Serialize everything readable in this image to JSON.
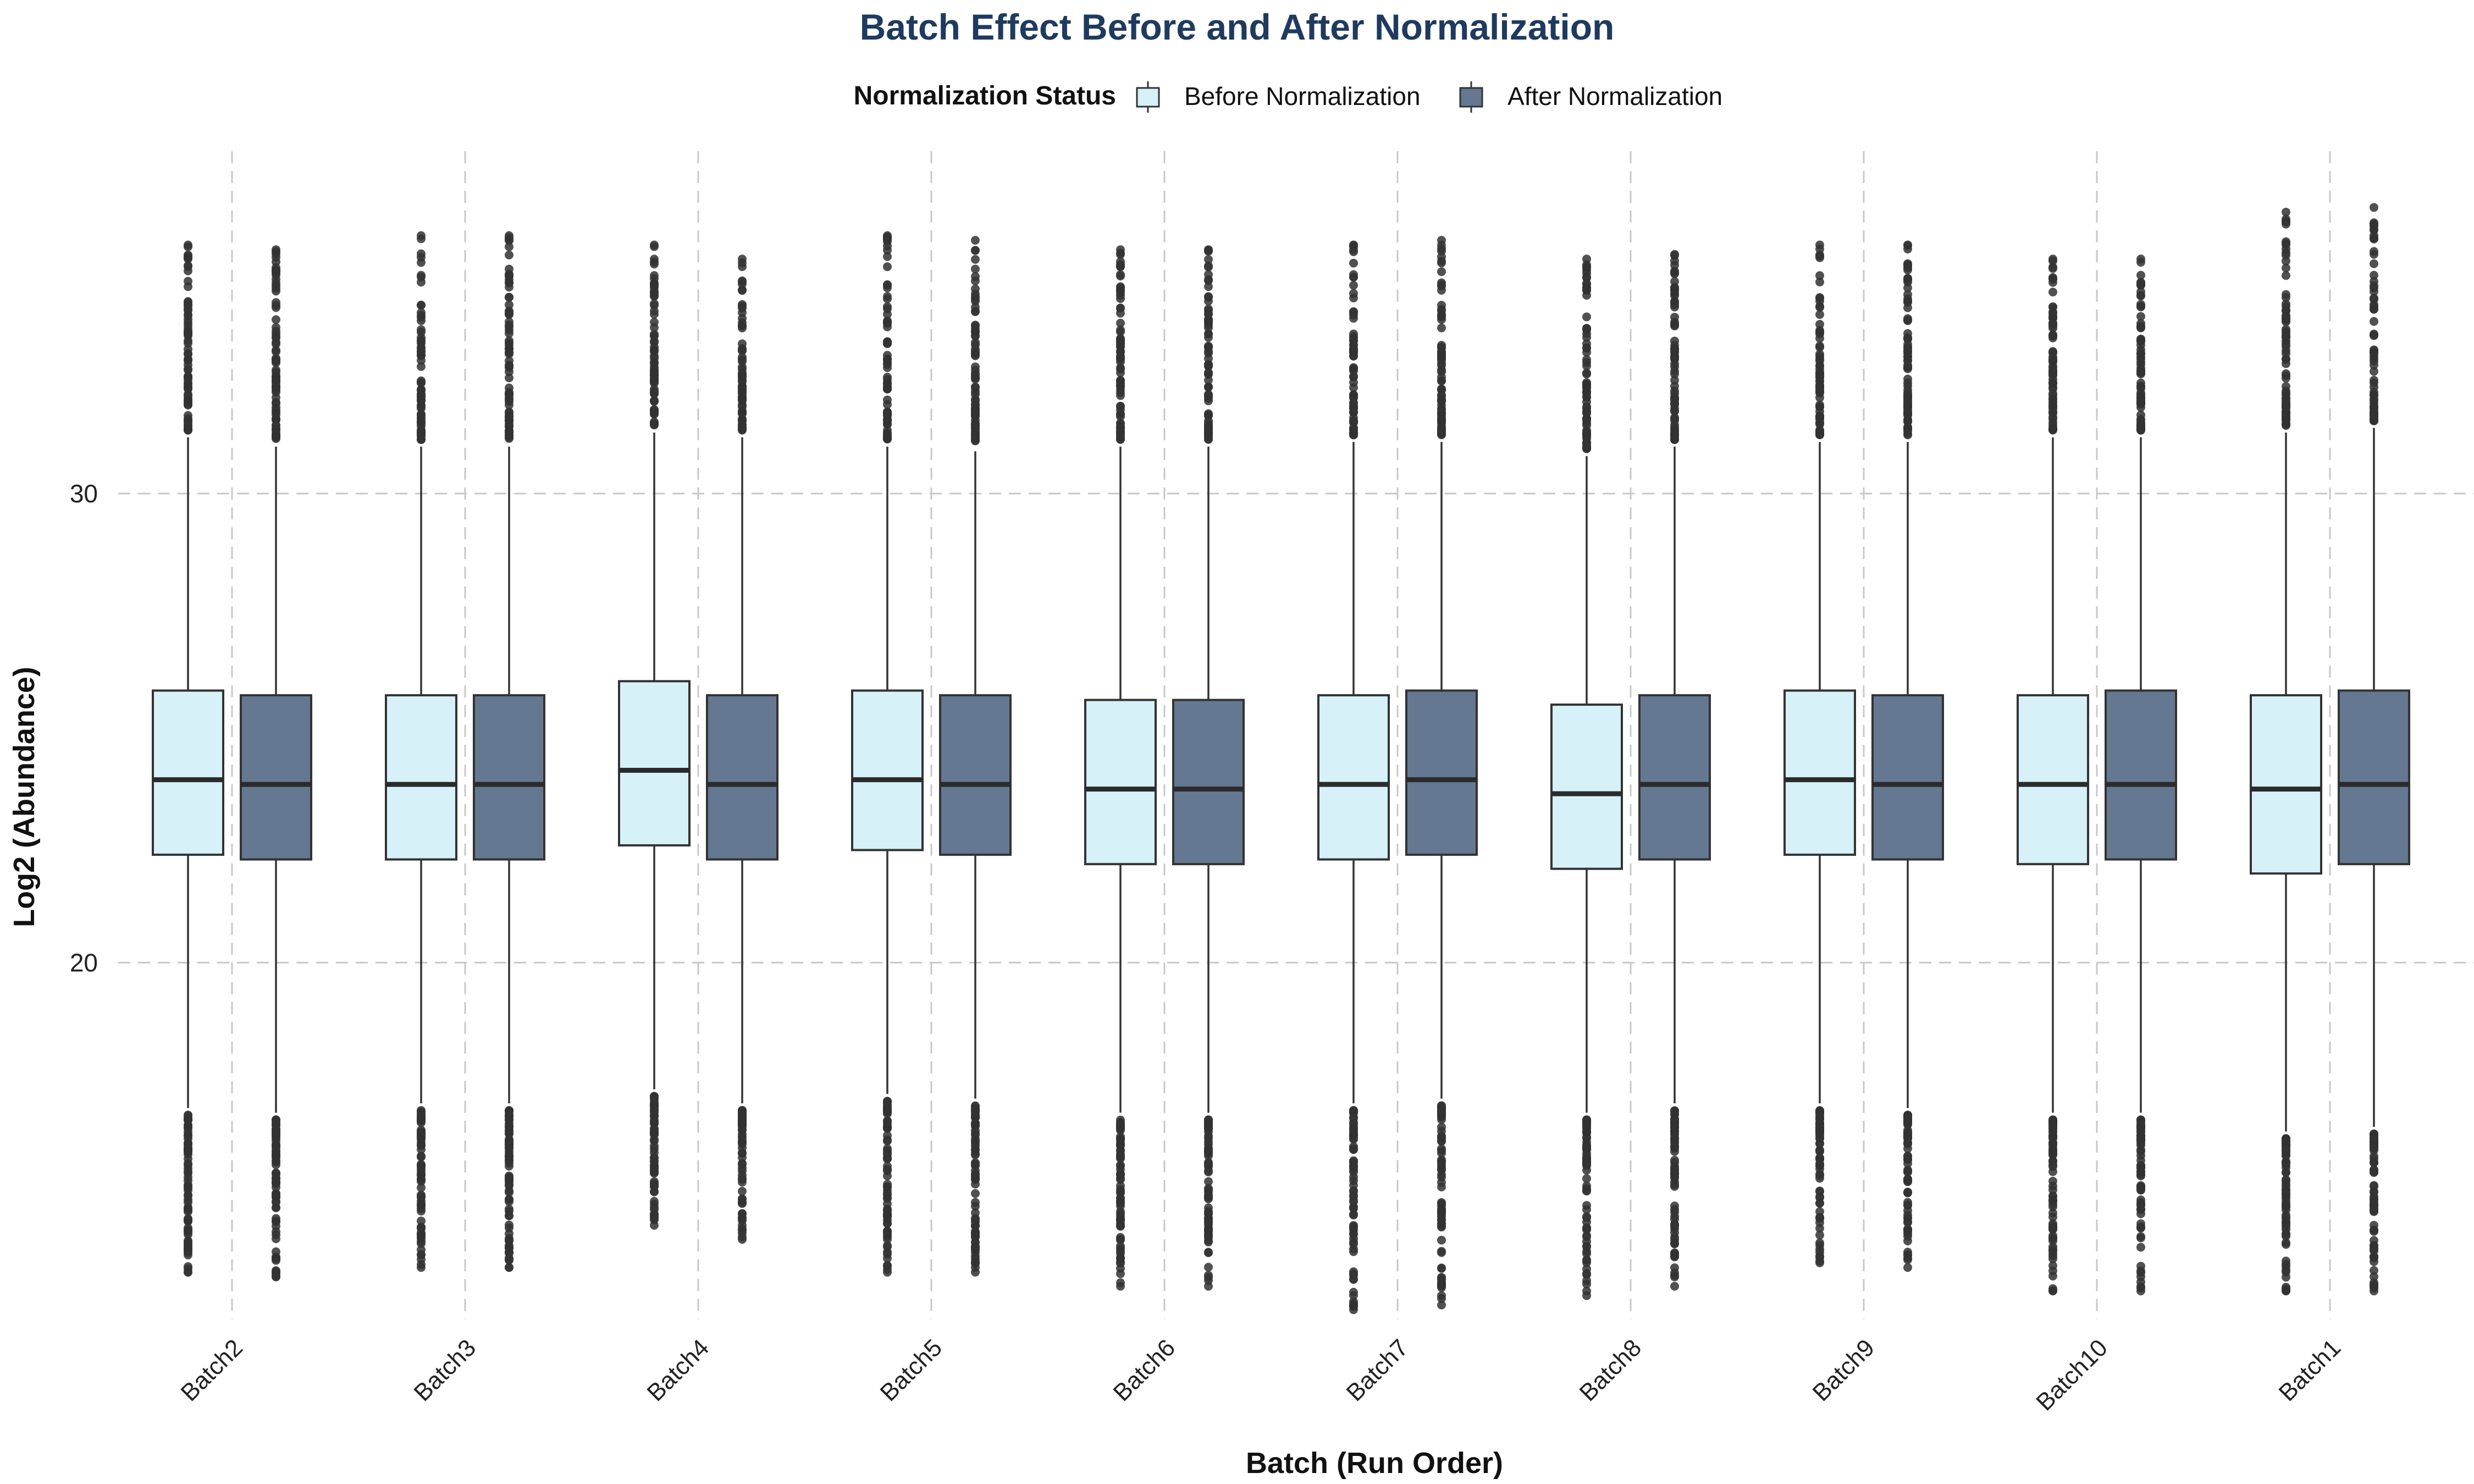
{
  "chart_data": {
    "type": "boxplot",
    "title": "Batch Effect Before and After Normalization",
    "xlabel": "Batch (Run Order)",
    "ylabel": "Log2 (Abundance)",
    "ylim": [
      12.4,
      37.3
    ],
    "yticks": [
      20,
      30
    ],
    "grid": true,
    "legend_title": "Normalization Status",
    "legend_position": "top",
    "categories": [
      "Batch2",
      "Batch3",
      "Batch4",
      "Batch5",
      "Batch6",
      "Batch7",
      "Batch8",
      "Batch9",
      "Batch10",
      "Batch1"
    ],
    "series": [
      {
        "name": "Before Normalization",
        "color": "#d6f1f8",
        "boxes": [
          {
            "q1": 22.3,
            "median": 23.9,
            "q3": 25.8,
            "wlo": 16.9,
            "whi": 31.2,
            "omin": 13.4,
            "omax": 35.3
          },
          {
            "q1": 22.2,
            "median": 23.8,
            "q3": 25.7,
            "wlo": 17.0,
            "whi": 31.0,
            "omin": 13.5,
            "omax": 35.5
          },
          {
            "q1": 22.5,
            "median": 24.1,
            "q3": 26.0,
            "wlo": 17.3,
            "whi": 31.3,
            "omin": 14.4,
            "omax": 35.3
          },
          {
            "q1": 22.4,
            "median": 23.9,
            "q3": 25.8,
            "wlo": 17.2,
            "whi": 31.0,
            "omin": 13.4,
            "omax": 35.5
          },
          {
            "q1": 22.1,
            "median": 23.7,
            "q3": 25.6,
            "wlo": 16.8,
            "whi": 31.0,
            "omin": 13.1,
            "omax": 35.2
          },
          {
            "q1": 22.2,
            "median": 23.8,
            "q3": 25.7,
            "wlo": 17.0,
            "whi": 31.1,
            "omin": 12.6,
            "omax": 35.3
          },
          {
            "q1": 22.0,
            "median": 23.6,
            "q3": 25.5,
            "wlo": 16.8,
            "whi": 30.8,
            "omin": 12.9,
            "omax": 35.0
          },
          {
            "q1": 22.3,
            "median": 23.9,
            "q3": 25.8,
            "wlo": 17.0,
            "whi": 31.1,
            "omin": 13.6,
            "omax": 35.3
          },
          {
            "q1": 22.1,
            "median": 23.8,
            "q3": 25.7,
            "wlo": 16.8,
            "whi": 31.2,
            "omin": 13.0,
            "omax": 35.0
          },
          {
            "q1": 21.9,
            "median": 23.7,
            "q3": 25.7,
            "wlo": 16.4,
            "whi": 31.3,
            "omin": 13.0,
            "omax": 36.0
          }
        ]
      },
      {
        "name": "After Normalization",
        "color": "#647891",
        "boxes": [
          {
            "q1": 22.2,
            "median": 23.8,
            "q3": 25.7,
            "wlo": 16.8,
            "whi": 31.0,
            "omin": 13.3,
            "omax": 35.2
          },
          {
            "q1": 22.2,
            "median": 23.8,
            "q3": 25.7,
            "wlo": 17.0,
            "whi": 31.0,
            "omin": 13.5,
            "omax": 35.5
          },
          {
            "q1": 22.2,
            "median": 23.8,
            "q3": 25.7,
            "wlo": 17.0,
            "whi": 31.2,
            "omin": 14.1,
            "omax": 35.0
          },
          {
            "q1": 22.3,
            "median": 23.8,
            "q3": 25.7,
            "wlo": 17.1,
            "whi": 30.9,
            "omin": 13.4,
            "omax": 35.4
          },
          {
            "q1": 22.1,
            "median": 23.7,
            "q3": 25.6,
            "wlo": 16.8,
            "whi": 31.0,
            "omin": 13.1,
            "omax": 35.2
          },
          {
            "q1": 22.3,
            "median": 23.9,
            "q3": 25.8,
            "wlo": 17.1,
            "whi": 31.1,
            "omin": 12.7,
            "omax": 35.4
          },
          {
            "q1": 22.2,
            "median": 23.8,
            "q3": 25.7,
            "wlo": 17.0,
            "whi": 31.0,
            "omin": 13.1,
            "omax": 35.1
          },
          {
            "q1": 22.2,
            "median": 23.8,
            "q3": 25.7,
            "wlo": 16.9,
            "whi": 31.1,
            "omin": 13.5,
            "omax": 35.3
          },
          {
            "q1": 22.2,
            "median": 23.8,
            "q3": 25.8,
            "wlo": 16.8,
            "whi": 31.2,
            "omin": 13.0,
            "omax": 35.0
          },
          {
            "q1": 22.1,
            "median": 23.8,
            "q3": 25.8,
            "wlo": 16.5,
            "whi": 31.4,
            "omin": 13.0,
            "omax": 36.1
          }
        ]
      }
    ]
  },
  "colors": {
    "title": "#1f3a5f",
    "grid": "#c8c8c8",
    "box_stroke": "#333333",
    "outlier": "#333333"
  }
}
